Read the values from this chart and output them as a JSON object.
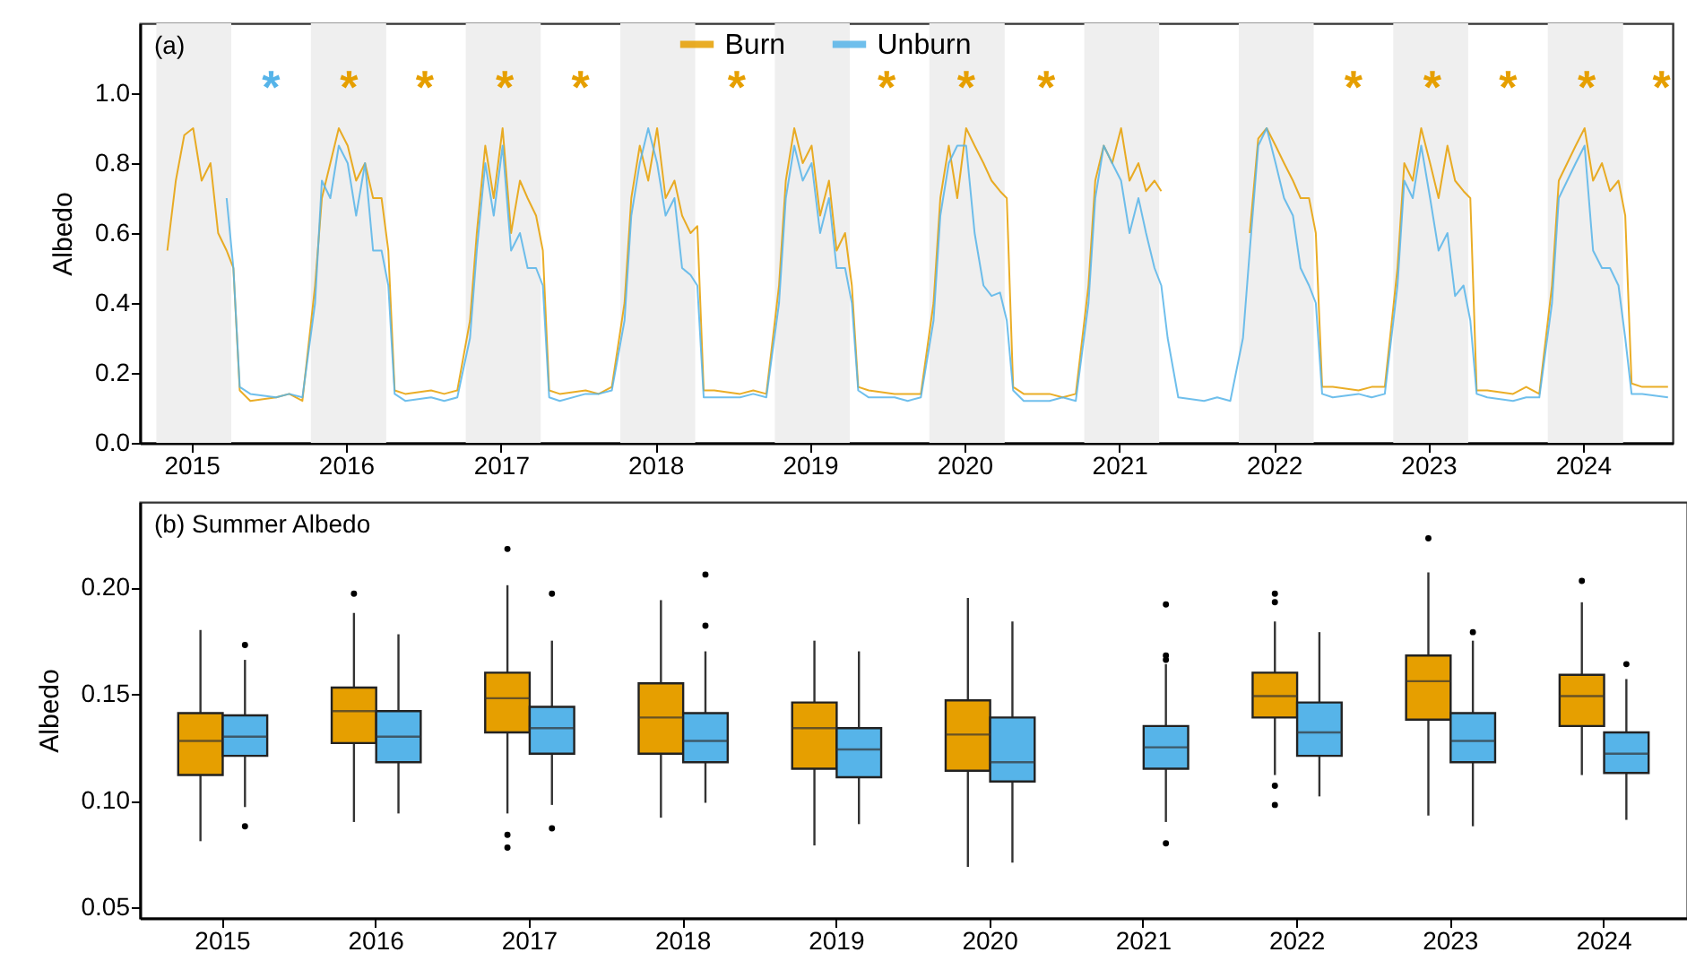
{
  "chart_data": [
    {
      "type": "line",
      "title": "(a)",
      "ylabel": "Albedo",
      "legend": "top",
      "xlim": [
        "2014-09-01",
        "2024-07-31"
      ],
      "xticks": [
        "2015",
        "2016",
        "2017",
        "2018",
        "2019",
        "2020",
        "2021",
        "2022",
        "2023",
        "2024"
      ],
      "ylim": [
        0,
        1.2
      ],
      "yticks": [
        {
          "value": 0,
          "label": "0.0"
        },
        {
          "value": 0.2,
          "label": "0.2"
        },
        {
          "value": 0.4,
          "label": "0.4"
        },
        {
          "value": 0.6,
          "label": "0.6"
        },
        {
          "value": 0.8,
          "label": "0.8"
        },
        {
          "value": 1,
          "label": "1.0"
        }
      ],
      "x": [
        "2014-11-05",
        "2014-11-25",
        "2014-12-15",
        "2015-01-05",
        "2015-01-25",
        "2015-02-15",
        "2015-03-05",
        "2015-03-25",
        "2015-04-10",
        "2015-04-25",
        "2015-05-20",
        "2015-07-20",
        "2015-08-20",
        "2015-09-20",
        "2015-10-20",
        "2015-11-05",
        "2015-11-25",
        "2015-12-15",
        "2016-01-05",
        "2016-01-25",
        "2016-02-15",
        "2016-03-05",
        "2016-03-25",
        "2016-04-10",
        "2016-04-25",
        "2016-05-20",
        "2016-07-20",
        "2016-08-20",
        "2016-09-20",
        "2016-10-20",
        "2016-11-05",
        "2016-11-25",
        "2016-12-15",
        "2017-01-05",
        "2017-01-25",
        "2017-02-15",
        "2017-03-05",
        "2017-03-25",
        "2017-04-10",
        "2017-04-25",
        "2017-05-20",
        "2017-07-20",
        "2017-08-20",
        "2017-09-20",
        "2017-10-20",
        "2017-11-05",
        "2017-11-25",
        "2017-12-15",
        "2018-01-05",
        "2018-01-25",
        "2018-02-15",
        "2018-03-05",
        "2018-03-25",
        "2018-04-10",
        "2018-04-25",
        "2018-05-20",
        "2018-07-20",
        "2018-08-20",
        "2018-09-20",
        "2018-10-20",
        "2018-11-05",
        "2018-11-25",
        "2018-12-15",
        "2019-01-05",
        "2019-01-25",
        "2019-02-15",
        "2019-03-05",
        "2019-03-25",
        "2019-04-10",
        "2019-04-25",
        "2019-05-20",
        "2019-07-20",
        "2019-08-20",
        "2019-09-20",
        "2019-10-20",
        "2019-11-05",
        "2019-11-25",
        "2019-12-15",
        "2020-01-05",
        "2020-01-25",
        "2020-02-15",
        "2020-03-05",
        "2020-03-25",
        "2020-04-10",
        "2020-04-25",
        "2020-05-20",
        "2020-07-20",
        "2020-08-20",
        "2020-09-20",
        "2020-10-20",
        "2020-11-05",
        "2020-11-25",
        "2020-12-15",
        "2021-01-05",
        "2021-01-25",
        "2021-02-15",
        "2021-03-05",
        "2021-03-25",
        "2021-04-10",
        "2021-04-25",
        "2021-05-20",
        "2021-07-20",
        "2021-08-20",
        "2021-09-20",
        "2021-10-20",
        "2021-11-05",
        "2021-11-25",
        "2021-12-15",
        "2022-01-05",
        "2022-01-25",
        "2022-02-15",
        "2022-03-05",
        "2022-03-25",
        "2022-04-10",
        "2022-04-25",
        "2022-05-20",
        "2022-07-20",
        "2022-08-20",
        "2022-09-20",
        "2022-10-20",
        "2022-11-05",
        "2022-11-25",
        "2022-12-15",
        "2023-01-05",
        "2023-01-25",
        "2023-02-15",
        "2023-03-05",
        "2023-03-25",
        "2023-04-10",
        "2023-04-25",
        "2023-05-20",
        "2023-07-20",
        "2023-08-20",
        "2023-09-20",
        "2023-10-20",
        "2023-11-05",
        "2023-11-25",
        "2023-12-15",
        "2024-01-05",
        "2024-01-25",
        "2024-02-15",
        "2024-03-05",
        "2024-03-25",
        "2024-04-10",
        "2024-04-25",
        "2024-05-20",
        "2024-07-20"
      ],
      "series": [
        {
          "name": "Burn",
          "color": "#e69f00",
          "values": [
            0.55,
            0.75,
            0.88,
            0.9,
            0.75,
            0.8,
            0.6,
            0.55,
            0.5,
            0.15,
            0.12,
            0.13,
            0.14,
            0.12,
            0.45,
            0.7,
            0.8,
            0.9,
            0.85,
            0.75,
            0.8,
            0.7,
            0.7,
            0.55,
            0.15,
            0.14,
            0.15,
            0.14,
            0.15,
            0.35,
            0.6,
            0.85,
            0.7,
            0.9,
            0.6,
            0.75,
            0.7,
            0.65,
            0.55,
            0.15,
            0.14,
            0.15,
            0.14,
            0.16,
            0.4,
            0.7,
            0.85,
            0.75,
            0.9,
            0.7,
            0.75,
            0.65,
            0.6,
            0.62,
            0.15,
            0.15,
            0.14,
            0.15,
            0.14,
            0.45,
            0.75,
            0.9,
            0.8,
            0.85,
            0.65,
            0.75,
            0.55,
            0.6,
            0.45,
            0.16,
            0.15,
            0.14,
            0.14,
            0.14,
            0.4,
            0.7,
            0.85,
            0.7,
            0.9,
            0.85,
            0.8,
            0.75,
            0.72,
            0.7,
            0.16,
            0.14,
            0.14,
            0.13,
            0.14,
            0.45,
            0.75,
            0.85,
            0.8,
            0.9,
            0.75,
            0.8,
            0.72,
            0.75,
            0.72,
            null,
            null,
            null,
            null,
            null,
            null,
            0.6,
            0.87,
            0.9,
            0.85,
            0.8,
            0.75,
            0.7,
            0.7,
            0.6,
            0.16,
            0.16,
            0.15,
            0.16,
            0.16,
            0.5,
            0.8,
            0.75,
            0.9,
            0.8,
            0.7,
            0.85,
            0.75,
            0.72,
            0.7,
            0.15,
            0.15,
            0.14,
            0.16,
            0.14,
            0.45,
            0.75,
            0.8,
            0.85,
            0.9,
            0.75,
            0.8,
            0.72,
            0.75,
            0.65,
            0.17,
            0.16,
            0.16
          ]
        },
        {
          "name": "Unburn",
          "color": "#56b4e9",
          "values": [
            null,
            null,
            null,
            null,
            null,
            null,
            null,
            0.7,
            0.5,
            0.16,
            0.14,
            0.13,
            0.14,
            0.13,
            0.4,
            0.75,
            0.7,
            0.85,
            0.8,
            0.65,
            0.8,
            0.55,
            0.55,
            0.45,
            0.14,
            0.12,
            0.13,
            0.12,
            0.13,
            0.3,
            0.55,
            0.8,
            0.65,
            0.85,
            0.55,
            0.6,
            0.5,
            0.5,
            0.45,
            0.13,
            0.12,
            0.14,
            0.14,
            0.15,
            0.35,
            0.65,
            0.8,
            0.9,
            0.8,
            0.65,
            0.7,
            0.5,
            0.48,
            0.45,
            0.13,
            0.13,
            0.13,
            0.14,
            0.13,
            0.4,
            0.7,
            0.85,
            0.75,
            0.8,
            0.6,
            0.7,
            0.5,
            0.5,
            0.4,
            0.15,
            0.13,
            0.13,
            0.12,
            0.13,
            0.35,
            0.65,
            0.8,
            0.85,
            0.85,
            0.6,
            0.45,
            0.42,
            0.43,
            0.35,
            0.15,
            0.12,
            0.12,
            0.13,
            0.12,
            0.4,
            0.7,
            0.85,
            0.8,
            0.75,
            0.6,
            0.7,
            0.6,
            0.5,
            0.45,
            0.3,
            0.13,
            0.12,
            0.13,
            0.12,
            0.3,
            0.55,
            0.85,
            0.9,
            0.8,
            0.7,
            0.65,
            0.5,
            0.45,
            0.4,
            0.14,
            0.13,
            0.14,
            0.13,
            0.14,
            0.45,
            0.75,
            0.7,
            0.85,
            0.7,
            0.55,
            0.6,
            0.42,
            0.45,
            0.35,
            0.14,
            0.13,
            0.12,
            0.13,
            0.13,
            0.4,
            0.7,
            0.75,
            0.8,
            0.85,
            0.55,
            0.5,
            0.5,
            0.45,
            0.3,
            0.14,
            0.14,
            0.13
          ]
        }
      ],
      "bands": [
        {
          "axis": "x",
          "from": "2014-10-10",
          "to": "2015-04-05",
          "color": "#efefef"
        },
        {
          "axis": "x",
          "from": "2015-10-10",
          "to": "2016-04-05",
          "color": "#efefef"
        },
        {
          "axis": "x",
          "from": "2016-10-10",
          "to": "2017-04-05",
          "color": "#efefef"
        },
        {
          "axis": "x",
          "from": "2017-10-10",
          "to": "2018-04-05",
          "color": "#efefef"
        },
        {
          "axis": "x",
          "from": "2018-10-10",
          "to": "2019-04-05",
          "color": "#efefef"
        },
        {
          "axis": "x",
          "from": "2019-10-10",
          "to": "2020-04-05",
          "color": "#efefef"
        },
        {
          "axis": "x",
          "from": "2020-10-10",
          "to": "2021-04-05",
          "color": "#efefef"
        },
        {
          "axis": "x",
          "from": "2021-10-10",
          "to": "2022-04-05",
          "color": "#efefef"
        },
        {
          "axis": "x",
          "from": "2022-10-10",
          "to": "2023-04-05",
          "color": "#efefef"
        },
        {
          "axis": "x",
          "from": "2023-10-10",
          "to": "2024-04-05",
          "color": "#efefef"
        }
      ],
      "annotations": [
        "*",
        "*",
        "*",
        "*",
        "*",
        "*",
        "*",
        "*",
        "*",
        "*",
        "*",
        "*",
        "*",
        "*"
      ]
    },
    {
      "type": "box",
      "title": "(b)  Summer Albedo",
      "ylabel": "Albedo",
      "categories": [
        "2015",
        "2016",
        "2017",
        "2018",
        "2019",
        "2020",
        "2021",
        "2022",
        "2023",
        "2024"
      ],
      "ylim": [
        0.045,
        0.24
      ],
      "yticks": [
        {
          "value": 0.05,
          "label": "0.05"
        },
        {
          "value": 0.1,
          "label": "0.10"
        },
        {
          "value": 0.15,
          "label": "0.15"
        },
        {
          "value": 0.2,
          "label": "0.20"
        }
      ],
      "series": [
        {
          "color": "#e69f00",
          "boxes": [
            {
              "low": 0.081,
              "q1": 0.112,
              "median": 0.128,
              "q3": 0.141,
              "high": 0.18
            },
            {
              "low": 0.09,
              "q1": 0.127,
              "median": 0.142,
              "q3": 0.153,
              "high": 0.188,
              "outliers": [
                0.197
              ]
            },
            {
              "low": 0.094,
              "q1": 0.132,
              "median": 0.148,
              "q3": 0.16,
              "high": 0.201,
              "outliers": [
                0.218,
                0.084,
                0.078
              ]
            },
            {
              "low": 0.092,
              "q1": 0.122,
              "median": 0.139,
              "q3": 0.155,
              "high": 0.194
            },
            {
              "low": 0.079,
              "q1": 0.115,
              "median": 0.134,
              "q3": 0.146,
              "high": 0.175
            },
            {
              "low": 0.069,
              "q1": 0.114,
              "median": 0.131,
              "q3": 0.147,
              "high": 0.195
            },
            null,
            {
              "low": 0.112,
              "q1": 0.139,
              "median": 0.149,
              "q3": 0.16,
              "high": 0.184,
              "outliers": [
                0.197,
                0.193,
                0.107,
                0.098
              ]
            },
            {
              "low": 0.093,
              "q1": 0.138,
              "median": 0.156,
              "q3": 0.168,
              "high": 0.207,
              "outliers": [
                0.223
              ]
            },
            {
              "low": 0.112,
              "q1": 0.135,
              "median": 0.149,
              "q3": 0.159,
              "high": 0.193,
              "outliers": [
                0.203
              ]
            }
          ]
        },
        {
          "color": "#56b4e9",
          "boxes": [
            {
              "low": 0.097,
              "q1": 0.121,
              "median": 0.13,
              "q3": 0.14,
              "high": 0.166,
              "outliers": [
                0.173,
                0.088
              ]
            },
            {
              "low": 0.094,
              "q1": 0.118,
              "median": 0.13,
              "q3": 0.142,
              "high": 0.178
            },
            {
              "low": 0.098,
              "q1": 0.122,
              "median": 0.134,
              "q3": 0.144,
              "high": 0.175,
              "outliers": [
                0.197,
                0.087
              ]
            },
            {
              "low": 0.099,
              "q1": 0.118,
              "median": 0.128,
              "q3": 0.141,
              "high": 0.17,
              "outliers": [
                0.206,
                0.182
              ]
            },
            {
              "low": 0.089,
              "q1": 0.111,
              "median": 0.124,
              "q3": 0.134,
              "high": 0.17
            },
            {
              "low": 0.071,
              "q1": 0.109,
              "median": 0.118,
              "q3": 0.139,
              "high": 0.184
            },
            {
              "low": 0.09,
              "q1": 0.115,
              "median": 0.125,
              "q3": 0.135,
              "high": 0.164,
              "outliers": [
                0.192,
                0.168,
                0.166,
                0.08
              ]
            },
            {
              "low": 0.102,
              "q1": 0.121,
              "median": 0.132,
              "q3": 0.146,
              "high": 0.179
            },
            {
              "low": 0.088,
              "q1": 0.118,
              "median": 0.128,
              "q3": 0.141,
              "high": 0.175,
              "outliers": [
                0.179
              ]
            },
            {
              "low": 0.091,
              "q1": 0.113,
              "median": 0.122,
              "q3": 0.132,
              "high": 0.157,
              "outliers": [
                0.164
              ]
            }
          ]
        }
      ]
    }
  ]
}
